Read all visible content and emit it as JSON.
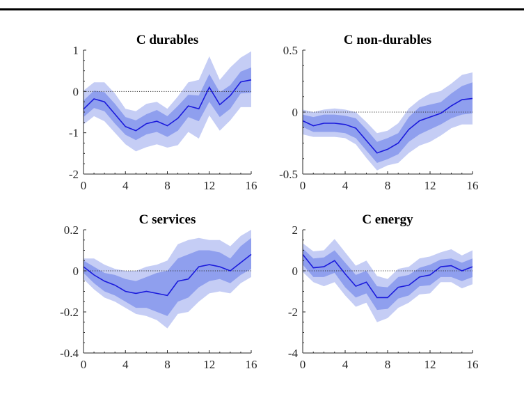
{
  "chart_data": [
    {
      "type": "line",
      "title": "C durables",
      "x": [
        0,
        1,
        2,
        3,
        4,
        5,
        6,
        7,
        8,
        9,
        10,
        11,
        12,
        13,
        14,
        15,
        16
      ],
      "ylim": [
        -2,
        1
      ],
      "xticks": [
        "0",
        "4",
        "8",
        "12",
        "16"
      ],
      "yticks": [
        "-2",
        "-1",
        "0",
        "1"
      ],
      "series": [
        {
          "role": "median",
          "values": [
            -0.43,
            -0.18,
            -0.25,
            -0.55,
            -0.85,
            -0.95,
            -0.78,
            -0.72,
            -0.83,
            -0.65,
            -0.35,
            -0.42,
            0.1,
            -0.32,
            -0.1,
            0.23,
            0.28
          ]
        },
        {
          "role": "band68",
          "lower": [
            -0.62,
            -0.4,
            -0.48,
            -0.78,
            -1.05,
            -1.18,
            -1.04,
            -0.98,
            -1.1,
            -0.95,
            -0.62,
            -0.72,
            -0.25,
            -0.62,
            -0.42,
            -0.05,
            -0.03
          ],
          "upper": [
            -0.22,
            0.02,
            -0.02,
            -0.3,
            -0.62,
            -0.7,
            -0.55,
            -0.45,
            -0.6,
            -0.35,
            -0.08,
            -0.1,
            0.42,
            -0.02,
            0.15,
            0.48,
            0.58
          ]
        },
        {
          "role": "band90",
          "lower": [
            -0.8,
            -0.6,
            -0.72,
            -1.0,
            -1.28,
            -1.45,
            -1.35,
            -1.28,
            -1.36,
            -1.3,
            -0.98,
            -1.14,
            -0.58,
            -0.95,
            -0.7,
            -0.38,
            -0.38
          ],
          "upper": [
            0.02,
            0.22,
            0.22,
            -0.05,
            -0.42,
            -0.48,
            -0.3,
            -0.25,
            -0.42,
            -0.12,
            0.22,
            0.28,
            0.85,
            0.28,
            0.58,
            0.82,
            0.97
          ]
        }
      ],
      "zero_line": true,
      "grid": "none"
    },
    {
      "type": "line",
      "title": "C non-durables",
      "x": [
        0,
        1,
        2,
        3,
        4,
        5,
        6,
        7,
        8,
        9,
        10,
        11,
        12,
        13,
        14,
        15,
        16
      ],
      "ylim": [
        -0.5,
        0.5
      ],
      "xticks": [
        "0",
        "4",
        "8",
        "12",
        "16"
      ],
      "yticks": [
        "-0.5",
        "0",
        "0.5"
      ],
      "series": [
        {
          "role": "median",
          "values": [
            -0.07,
            -0.11,
            -0.09,
            -0.09,
            -0.1,
            -0.13,
            -0.23,
            -0.33,
            -0.3,
            -0.25,
            -0.14,
            -0.07,
            -0.04,
            -0.01,
            0.05,
            0.1,
            0.11
          ]
        },
        {
          "role": "band68",
          "lower": [
            -0.12,
            -0.16,
            -0.16,
            -0.16,
            -0.17,
            -0.21,
            -0.31,
            -0.41,
            -0.38,
            -0.34,
            -0.24,
            -0.18,
            -0.14,
            -0.1,
            -0.05,
            -0.02,
            -0.01
          ],
          "upper": [
            -0.02,
            -0.04,
            -0.02,
            -0.02,
            -0.03,
            -0.05,
            -0.14,
            -0.24,
            -0.21,
            -0.17,
            -0.04,
            0.04,
            0.06,
            0.08,
            0.15,
            0.21,
            0.24
          ]
        },
        {
          "role": "band90",
          "lower": [
            -0.18,
            -0.2,
            -0.2,
            -0.2,
            -0.21,
            -0.26,
            -0.37,
            -0.47,
            -0.43,
            -0.41,
            -0.33,
            -0.27,
            -0.24,
            -0.19,
            -0.13,
            -0.1,
            -0.1
          ],
          "upper": [
            0.02,
            0.0,
            0.02,
            0.03,
            0.02,
            0.0,
            -0.08,
            -0.17,
            -0.15,
            -0.09,
            0.03,
            0.1,
            0.15,
            0.17,
            0.23,
            0.3,
            0.32
          ]
        }
      ],
      "zero_line": true,
      "grid": "none"
    },
    {
      "type": "line",
      "title": "C services",
      "x": [
        0,
        1,
        2,
        3,
        4,
        5,
        6,
        7,
        8,
        9,
        10,
        11,
        12,
        13,
        14,
        15,
        16
      ],
      "ylim": [
        -0.4,
        0.2
      ],
      "xticks": [
        "0",
        "4",
        "8",
        "12",
        "16"
      ],
      "yticks": [
        "-0.4",
        "-0.2",
        "0",
        "0.2"
      ],
      "series": [
        {
          "role": "median",
          "values": [
            0.02,
            -0.02,
            -0.05,
            -0.07,
            -0.1,
            -0.11,
            -0.1,
            -0.11,
            -0.12,
            -0.05,
            -0.04,
            0.02,
            0.03,
            0.02,
            0.0,
            0.04,
            0.08
          ]
        },
        {
          "role": "band68",
          "lower": [
            -0.01,
            -0.06,
            -0.1,
            -0.12,
            -0.15,
            -0.18,
            -0.18,
            -0.2,
            -0.22,
            -0.15,
            -0.13,
            -0.08,
            -0.05,
            -0.04,
            -0.06,
            -0.02,
            0.01
          ],
          "upper": [
            0.05,
            0.02,
            -0.01,
            -0.02,
            -0.04,
            -0.05,
            -0.03,
            -0.01,
            0.0,
            0.06,
            0.08,
            0.1,
            0.1,
            0.09,
            0.06,
            0.12,
            0.16
          ]
        },
        {
          "role": "band90",
          "lower": [
            -0.04,
            -0.09,
            -0.13,
            -0.15,
            -0.18,
            -0.21,
            -0.22,
            -0.24,
            -0.28,
            -0.21,
            -0.2,
            -0.15,
            -0.11,
            -0.1,
            -0.11,
            -0.06,
            -0.03
          ],
          "upper": [
            0.06,
            0.06,
            0.03,
            0.01,
            0.0,
            0.0,
            0.02,
            0.03,
            0.05,
            0.13,
            0.15,
            0.16,
            0.15,
            0.15,
            0.12,
            0.17,
            0.2
          ]
        }
      ],
      "zero_line": true,
      "grid": "none"
    },
    {
      "type": "line",
      "title": "C energy",
      "x": [
        0,
        1,
        2,
        3,
        4,
        5,
        6,
        7,
        8,
        9,
        10,
        11,
        12,
        13,
        14,
        15,
        16
      ],
      "ylim": [
        -4,
        2
      ],
      "xticks": [
        "0",
        "4",
        "8",
        "12",
        "16"
      ],
      "yticks": [
        "-4",
        "-2",
        "0",
        "2"
      ],
      "series": [
        {
          "role": "median",
          "values": [
            0.8,
            0.15,
            0.2,
            0.5,
            -0.15,
            -0.75,
            -0.55,
            -1.3,
            -1.3,
            -0.8,
            -0.7,
            -0.3,
            -0.2,
            0.2,
            0.25,
            0.0,
            0.2
          ]
        },
        {
          "role": "band68",
          "lower": [
            0.3,
            -0.3,
            -0.3,
            -0.1,
            -0.8,
            -1.3,
            -1.1,
            -1.9,
            -1.85,
            -1.35,
            -1.2,
            -0.75,
            -0.7,
            -0.3,
            -0.3,
            -0.5,
            -0.3
          ],
          "upper": [
            1.1,
            0.6,
            0.65,
            1.0,
            0.4,
            -0.2,
            0.0,
            -0.75,
            -0.8,
            -0.3,
            -0.2,
            0.15,
            0.3,
            0.55,
            0.6,
            0.4,
            0.6
          ]
        },
        {
          "role": "band90",
          "lower": [
            -0.05,
            -0.55,
            -0.75,
            -0.55,
            -1.2,
            -1.75,
            -1.55,
            -2.5,
            -2.3,
            -1.8,
            -1.55,
            -1.15,
            -1.1,
            -0.55,
            -0.55,
            -0.85,
            -0.65
          ],
          "upper": [
            1.35,
            0.95,
            1.0,
            1.55,
            0.9,
            0.25,
            0.5,
            -0.25,
            -0.4,
            0.1,
            0.2,
            0.6,
            0.7,
            0.9,
            1.05,
            0.75,
            1.0
          ]
        }
      ],
      "zero_line": true,
      "grid": "none"
    }
  ],
  "colors": {
    "band90": "#c5cdf5",
    "band68": "#8f9fee",
    "median": "#1a1adc",
    "zero_line": "#333333",
    "axis": "#262626",
    "top_rule": "#000000"
  }
}
